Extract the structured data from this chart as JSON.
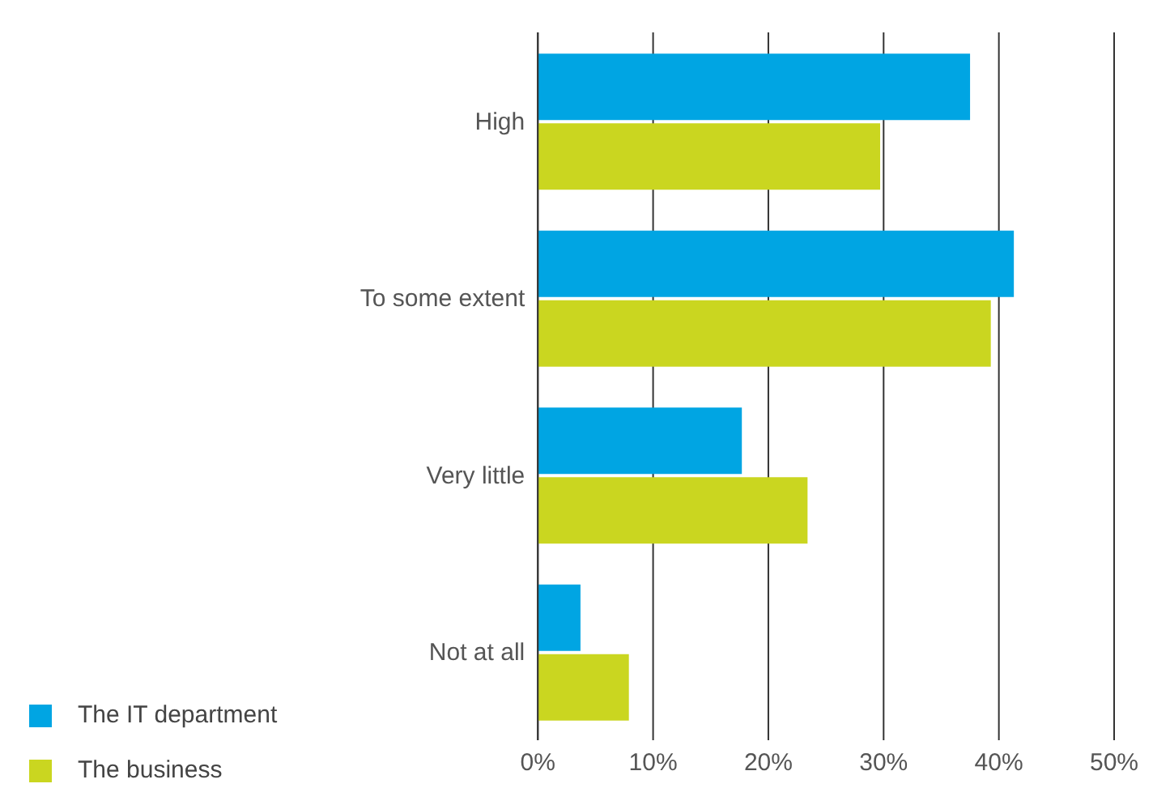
{
  "chart_data": {
    "type": "bar",
    "orientation": "horizontal",
    "categories": [
      "High",
      "To some extent",
      "Very little",
      "Not at all"
    ],
    "series": [
      {
        "name": "The IT department",
        "color": "#00a5e3",
        "values": [
          37.5,
          41.3,
          17.7,
          3.7
        ]
      },
      {
        "name": "The business",
        "color": "#cad620",
        "values": [
          29.7,
          39.3,
          23.4,
          7.9
        ]
      }
    ],
    "xlim": [
      0,
      50
    ],
    "xticks": [
      {
        "value": 0,
        "label": "0%"
      },
      {
        "value": 10,
        "label": "10%"
      },
      {
        "value": 20,
        "label": "20%"
      },
      {
        "value": 30,
        "label": "30%"
      },
      {
        "value": 40,
        "label": "40%"
      },
      {
        "value": 50,
        "label": "50%"
      }
    ],
    "grid": "x",
    "legend": "bottom left"
  }
}
